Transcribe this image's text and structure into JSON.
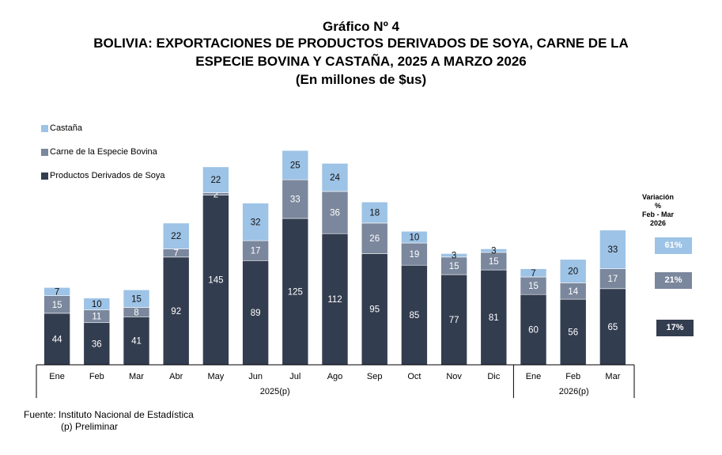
{
  "title": {
    "line1": "Gráfico Nº 4",
    "line2": "BOLIVIA: EXPORTACIONES DE PRODUCTOS DERIVADOS DE SOYA, CARNE DE LA",
    "line3": "ESPECIE BOVINA Y CASTAÑA, 2025 A MARZO 2026",
    "line4": "(En millones de $us)"
  },
  "colors": {
    "soya": "#333d50",
    "bovina": "#7a879c",
    "castana": "#9dc3e6"
  },
  "variation": {
    "title_line1": "Variación %",
    "title_line2": "Feb - Mar",
    "title_line3": "2026",
    "castana": "61%",
    "bovina": "21%",
    "soya": "17%"
  },
  "source": {
    "line1": "Fuente: Instituto Nacional de Estadística",
    "line2": "(p) Preliminar"
  },
  "chart_data": {
    "type": "bar",
    "stacked": true,
    "title": "BOLIVIA: EXPORTACIONES DE PRODUCTOS DERIVADOS DE SOYA, CARNE DE LA ESPECIE BOVINA Y CASTAÑA, 2025 A MARZO 2026",
    "subtitle": "(En millones de $us)",
    "xlabel": "",
    "ylabel": "",
    "categories": [
      "Ene",
      "Feb",
      "Mar",
      "Abr",
      "May",
      "Jun",
      "Jul",
      "Ago",
      "Sep",
      "Oct",
      "Nov",
      "Dic",
      "Ene",
      "Feb",
      "Mar"
    ],
    "groups": [
      {
        "label": "2025(p)",
        "count": 12
      },
      {
        "label": "2026(p)",
        "count": 3
      }
    ],
    "series": [
      {
        "name": "Productos Derivados de Soya",
        "key": "soya",
        "values": [
          44,
          36,
          41,
          92,
          145,
          89,
          125,
          112,
          95,
          85,
          77,
          81,
          60,
          56,
          65
        ]
      },
      {
        "name": "Carne de la Especie Bovina",
        "key": "bovina",
        "values": [
          15,
          11,
          8,
          7,
          2,
          17,
          33,
          36,
          26,
          19,
          15,
          15,
          15,
          14,
          17
        ]
      },
      {
        "name": "Castaña",
        "key": "castana",
        "values": [
          7,
          10,
          15,
          22,
          22,
          32,
          25,
          24,
          18,
          10,
          3,
          3,
          7,
          20,
          33
        ]
      }
    ],
    "legend": [
      "Castaña",
      "Carne de la Especie Bovina",
      "Productos Derivados de Soya"
    ],
    "legend_position": "top-left",
    "grid": false,
    "ylim": [
      0,
      190
    ]
  }
}
